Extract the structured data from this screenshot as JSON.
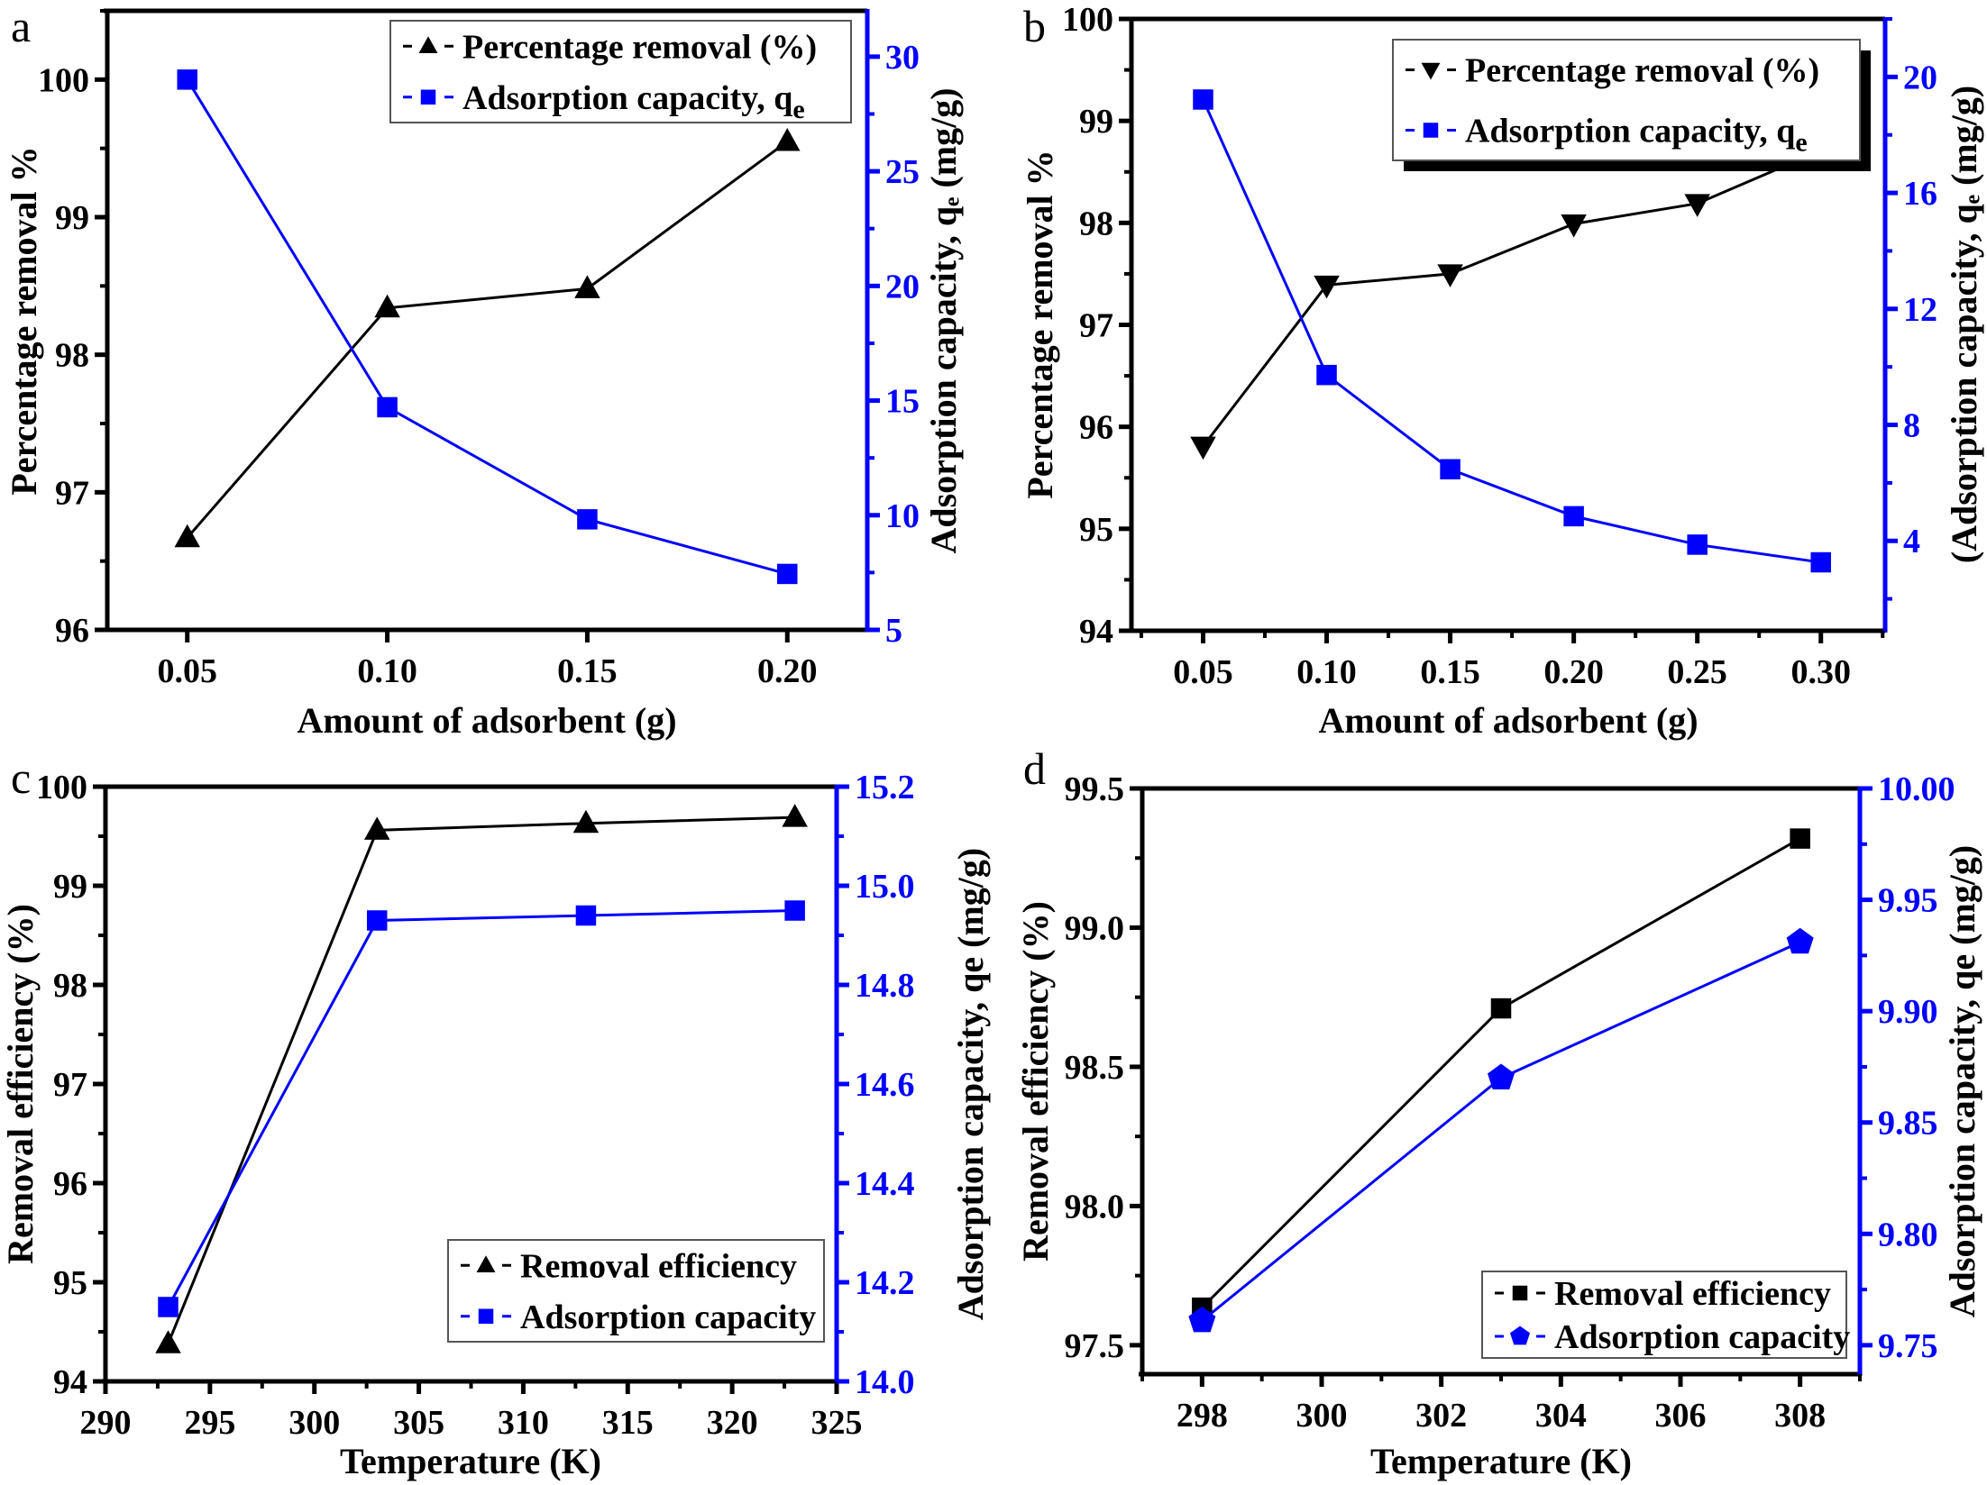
{
  "figure": {
    "colors": {
      "primary": "#000000",
      "secondary": "#0000ff",
      "background": "#ffffff"
    }
  },
  "chart_data": [
    {
      "id": "a",
      "type": "line",
      "panel_label": "a",
      "xlabel": "Amount of adsorbent (g)",
      "ylabel_left": "Percentage removal %",
      "ylabel_right": "Adsorption capacity, qₑ (mg/g)",
      "xlim": [
        0.03,
        0.22
      ],
      "ylim_left": [
        96,
        100.5
      ],
      "ylim_right": [
        5,
        32
      ],
      "xticks": [
        "0.05",
        "0.10",
        "0.15",
        "0.20"
      ],
      "yticks_left": [
        "96",
        "97",
        "98",
        "99",
        "100"
      ],
      "yticks_right": [
        "5",
        "10",
        "15",
        "20",
        "25",
        "30"
      ],
      "legend_position": "top-right",
      "grid": false,
      "x": [
        0.05,
        0.1,
        0.15,
        0.2
      ],
      "series": [
        {
          "name": "Percentage removal (%)",
          "axis": "left",
          "marker": "triangle-up",
          "color": "#000000",
          "values": [
            96.67,
            98.34,
            98.48,
            99.55
          ]
        },
        {
          "name": "Adsorption capacity, q",
          "name_subscript": "e",
          "axis": "right",
          "marker": "square",
          "color": "#0000ff",
          "values": [
            29.0,
            14.71,
            9.82,
            7.44
          ]
        }
      ]
    },
    {
      "id": "b",
      "type": "line",
      "panel_label": "b",
      "xlabel": "Amount of adsorbent (g)",
      "ylabel_left": "Percentage removal %",
      "ylabel_right": "(Adsorption capacity, qₑ (mg/g)",
      "xlim": [
        0.021,
        0.326
      ],
      "ylim_left": [
        94,
        100
      ],
      "ylim_right": [
        0.9,
        22.0
      ],
      "xticks": [
        "0.05",
        "0.10",
        "0.15",
        "0.20",
        "0.25",
        "0.30"
      ],
      "yticks_left": [
        "94",
        "95",
        "96",
        "97",
        "98",
        "99",
        "100"
      ],
      "yticks_right": [
        "4",
        "8",
        "12",
        "16",
        "20"
      ],
      "legend_position": "top-right",
      "legend_shadow": true,
      "grid": false,
      "x": [
        0.05,
        0.1,
        0.15,
        0.2,
        0.25,
        0.3
      ],
      "series": [
        {
          "name": "Percentage removal (%)",
          "axis": "left",
          "marker": "triangle-down",
          "color": "#000000",
          "values": [
            95.81,
            97.39,
            97.5,
            97.99,
            98.19,
            98.71
          ]
        },
        {
          "name": "Adsorption capacity, q",
          "name_subscript": "e",
          "axis": "right",
          "marker": "square",
          "color": "#0000ff",
          "values": [
            19.22,
            9.72,
            6.47,
            4.85,
            3.87,
            3.26
          ]
        }
      ]
    },
    {
      "id": "c",
      "type": "line",
      "panel_label": "c",
      "xlabel": "Temperature (K)",
      "ylabel_left": "Removal efficiency (%)",
      "ylabel_right": "Adsorption capacity, qe (mg/g)",
      "xlim": [
        290,
        325
      ],
      "ylim_left": [
        94,
        100
      ],
      "ylim_right": [
        14.0,
        15.2
      ],
      "xticks": [
        "290",
        "295",
        "300",
        "305",
        "310",
        "315",
        "320",
        "325"
      ],
      "yticks_left": [
        "94",
        "95",
        "96",
        "97",
        "98",
        "99",
        "100"
      ],
      "yticks_right": [
        "14.0",
        "14.2",
        "14.4",
        "14.6",
        "14.8",
        "15.0",
        "15.2"
      ],
      "legend_position": "bottom-right",
      "grid": false,
      "x": [
        293,
        303,
        313,
        323
      ],
      "series": [
        {
          "name": "Removal efficiency",
          "axis": "left",
          "marker": "triangle-up",
          "color": "#000000",
          "values": [
            94.38,
            99.56,
            99.63,
            99.69
          ]
        },
        {
          "name": "Adsorption capacity",
          "axis": "right",
          "marker": "square",
          "color": "#0000ff",
          "values": [
            14.15,
            14.93,
            14.94,
            14.95
          ]
        }
      ]
    },
    {
      "id": "d",
      "type": "line",
      "panel_label": "d",
      "xlabel": "Temperature (K)",
      "ylabel_left": "Removal efficiency (%)",
      "ylabel_right": "Adsorption capacity, qe (mg/g)",
      "xlim": [
        297,
        309
      ],
      "ylim_left": [
        97.396,
        99.5
      ],
      "ylim_right": [
        9.737,
        10.0
      ],
      "xticks": [
        "298",
        "300",
        "302",
        "304",
        "306",
        "308"
      ],
      "yticks_left": [
        "97.5",
        "98.0",
        "98.5",
        "99.0",
        "99.5"
      ],
      "yticks_right": [
        "9.75",
        "9.80",
        "9.85",
        "9.90",
        "9.95",
        "10.00"
      ],
      "legend_position": "bottom-right",
      "grid": false,
      "x": [
        298,
        303,
        308
      ],
      "series": [
        {
          "name": "Removal efficiency",
          "axis": "left",
          "marker": "square",
          "color": "#000000",
          "values": [
            97.635,
            98.71,
            99.32
          ]
        },
        {
          "name": "Adsorption capacity",
          "axis": "right",
          "marker": "pentagon",
          "color": "#0000ff",
          "values": [
            9.761,
            9.87,
            9.931
          ]
        }
      ]
    }
  ]
}
